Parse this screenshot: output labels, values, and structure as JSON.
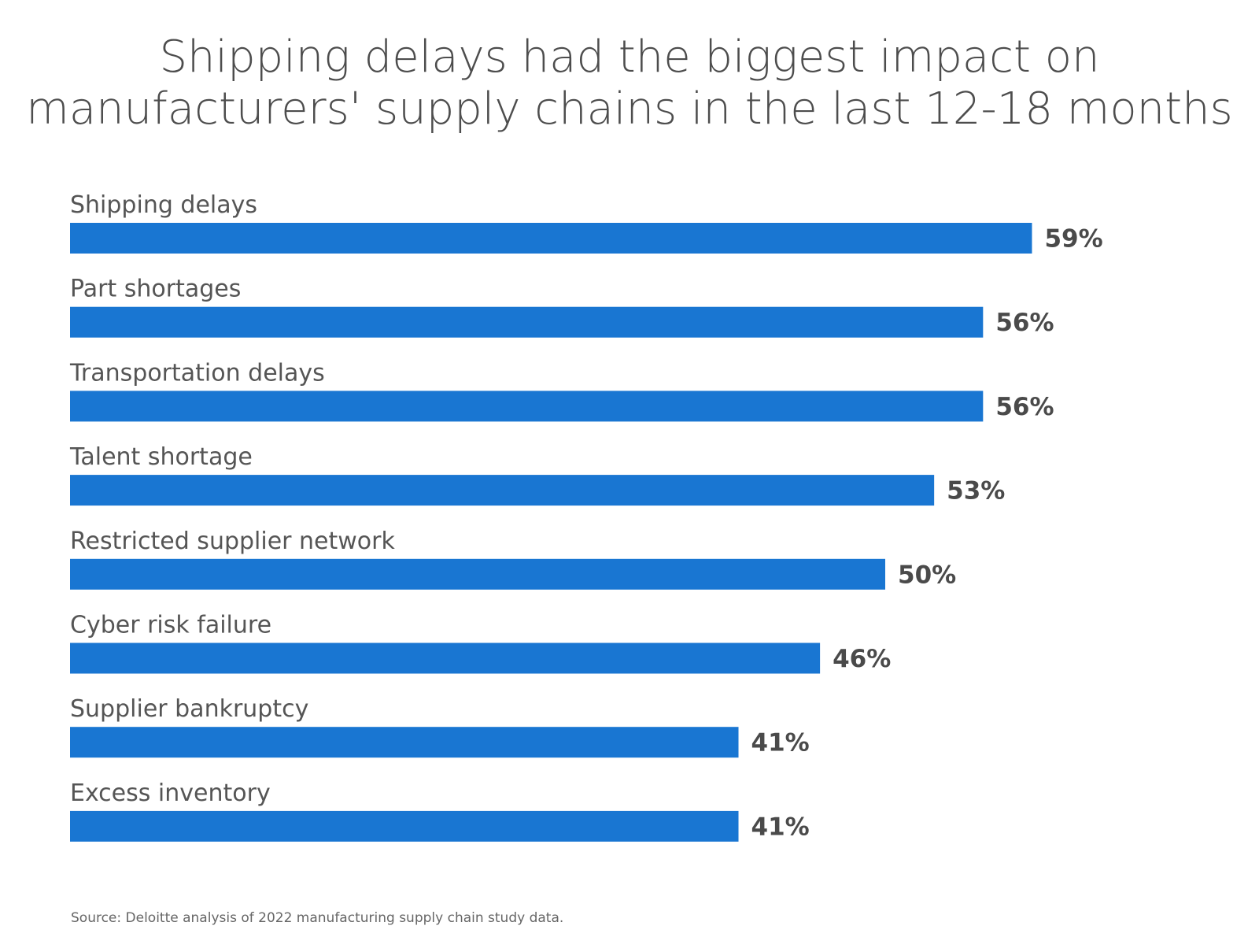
{
  "chart_data": {
    "type": "bar",
    "orientation": "horizontal",
    "title_lines": [
      "Shipping delays had the biggest impact on",
      "manufacturers' supply chains in the last 12-18 months"
    ],
    "categories": [
      "Shipping delays",
      "Part shortages",
      "Transportation delays",
      "Talent shortage",
      "Restricted supplier network",
      "Cyber risk failure",
      "Supplier bankruptcy",
      "Excess inventory"
    ],
    "values": [
      59,
      56,
      56,
      53,
      50,
      46,
      41,
      41
    ],
    "value_labels": [
      "59%",
      "56%",
      "56%",
      "53%",
      "50%",
      "46%",
      "41%",
      "41%"
    ],
    "unit": "%",
    "xlim": [
      0,
      100
    ],
    "grid": false,
    "legend": "none",
    "bar_color": "#1976d2",
    "source": "Source: Deloitte analysis of 2022 manufacturing supply chain study data."
  }
}
